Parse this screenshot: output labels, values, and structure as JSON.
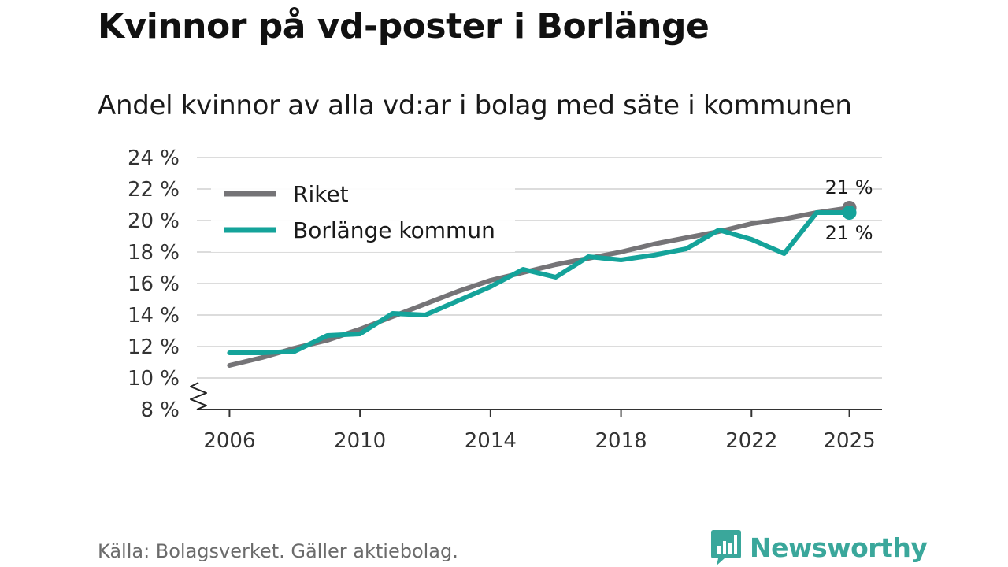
{
  "title": "Kvinnor på vd-poster i Borlänge",
  "subtitle": "Andel kvinnor av alla vd:ar i bolag med säte i kommunen",
  "source": "Källa: Bolagsverket. Gäller aktiebolag.",
  "brand": "Newsworthy",
  "colors": {
    "riket": "#757477",
    "borlange": "#14a39a",
    "grid": "#dcdcdc",
    "axis": "#333333",
    "brand": "#3aa79b"
  },
  "chart_data": {
    "type": "line",
    "title": "Kvinnor på vd-poster i Borlänge",
    "subtitle": "Andel kvinnor av alla vd:ar i bolag med säte i kommunen",
    "xlabel": "",
    "ylabel": "",
    "x_ticks": [
      "2006",
      "2010",
      "2014",
      "2018",
      "2022",
      "2025"
    ],
    "y_ticks": [
      "8 %",
      "10 %",
      "12 %",
      "14 %",
      "16 %",
      "18 %",
      "20 %",
      "22 %",
      "24 %"
    ],
    "ylim": [
      8,
      24
    ],
    "xlim": [
      2005,
      2026
    ],
    "axis_break": true,
    "legend_position": "top-left",
    "x": [
      2006,
      2007,
      2008,
      2009,
      2010,
      2011,
      2012,
      2013,
      2014,
      2015,
      2016,
      2017,
      2018,
      2019,
      2020,
      2021,
      2022,
      2023,
      2024,
      2025
    ],
    "series": [
      {
        "name": "Riket",
        "key": "riket",
        "values": [
          10.8,
          11.3,
          11.9,
          12.4,
          13.1,
          13.9,
          14.7,
          15.5,
          16.2,
          16.7,
          17.2,
          17.6,
          18.0,
          18.5,
          18.9,
          19.3,
          19.8,
          20.1,
          20.5,
          20.8
        ],
        "end_label": "21 %"
      },
      {
        "name": "Borlänge kommun",
        "key": "borlange",
        "values": [
          11.6,
          11.6,
          11.7,
          12.7,
          12.8,
          14.1,
          14.0,
          14.9,
          15.8,
          16.9,
          16.4,
          17.7,
          17.5,
          17.8,
          18.2,
          19.4,
          18.8,
          17.9,
          20.5,
          20.5
        ],
        "end_label": "21 %"
      }
    ]
  }
}
